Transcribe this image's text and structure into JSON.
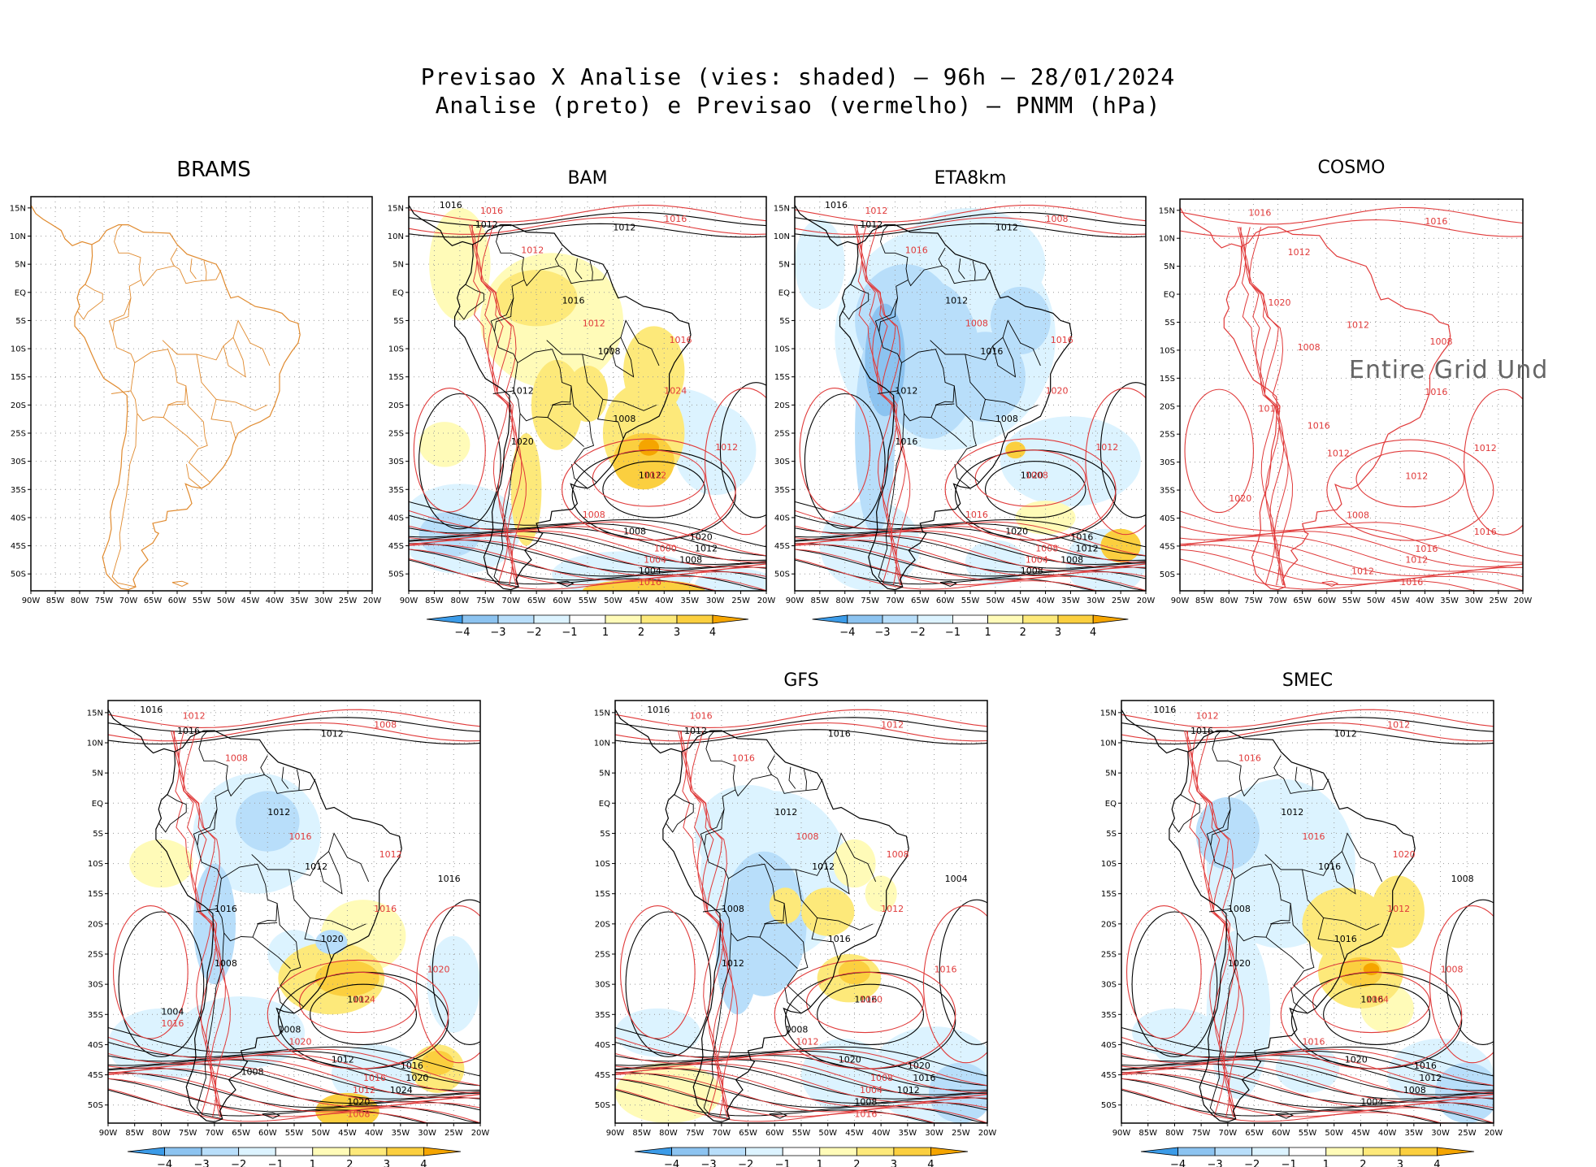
{
  "header": {
    "line1": "Previsao X Analise (vies: shaded) — 96h — 28/01/2024",
    "line2": "Analise (preto) e Previsao (vermelho) — PNMM (hPa)"
  },
  "colors": {
    "neg4": "#3b9be8",
    "neg3": "#8cc3f0",
    "neg2": "#b8defa",
    "neg1": "#dcf3ff",
    "zero": "#ffffff",
    "pos1": "#fffbb8",
    "pos2": "#fde97a",
    "pos3": "#fbcf3f",
    "pos4": "#f5a500",
    "coast_brams": "#e08a2e",
    "analysis_contour": "#000000",
    "forecast_contour": "#e03a3a"
  },
  "axes": {
    "lat_labels": [
      "15N",
      "10N",
      "5N",
      "EQ",
      "5S",
      "10S",
      "15S",
      "20S",
      "25S",
      "30S",
      "35S",
      "40S",
      "45S",
      "50S"
    ],
    "lon_labels": [
      "90W",
      "85W",
      "80W",
      "75W",
      "70W",
      "65W",
      "60W",
      "55W",
      "50W",
      "45W",
      "40W",
      "35W",
      "30W",
      "25W",
      "20W"
    ]
  },
  "colorbar": {
    "ticks": [
      "−4",
      "−3",
      "−2",
      "−1",
      "1",
      "2",
      "3",
      "4"
    ]
  },
  "panels": [
    {
      "id": "brams",
      "title": "BRAMS",
      "has_colorbar": false,
      "note": ""
    },
    {
      "id": "bam",
      "title": "BAM",
      "has_colorbar": true,
      "note": "",
      "labels_black": [
        "1016",
        "1012",
        "1012",
        "1016",
        "1008",
        "1012",
        "1008",
        "1020",
        "1012",
        "1008",
        "1020",
        "1012",
        "1008",
        "1004"
      ],
      "labels_red": [
        "1016",
        "1012",
        "1016",
        "1012",
        "1016",
        "1024",
        "1012",
        "1012",
        "1008",
        "1000",
        "1004",
        "1016"
      ]
    },
    {
      "id": "eta8km",
      "title": "ETA8km",
      "has_colorbar": true,
      "note": "",
      "labels_black": [
        "1016",
        "1012",
        "1012",
        "1012",
        "1016",
        "1012",
        "1008",
        "1016",
        "1020",
        "1020",
        "1016",
        "1012",
        "1008",
        "1008"
      ],
      "labels_red": [
        "1012",
        "1016",
        "1008",
        "1008",
        "1016",
        "1020",
        "1012",
        "1008",
        "1016",
        "1008",
        "1004"
      ]
    },
    {
      "id": "cosmo",
      "title": "COSMO",
      "has_colorbar": false,
      "note": "Entire Grid Und",
      "labels_red": [
        "1016",
        "1012",
        "1016",
        "1012",
        "1008",
        "1016",
        "1012",
        "1012",
        "1008",
        "1016",
        "1012",
        "1016",
        "1020",
        "1012",
        "1020",
        "1016",
        "1008",
        "1012",
        "1016",
        "1012"
      ]
    },
    {
      "id": "unnamed",
      "title": "",
      "has_colorbar": true,
      "note": "",
      "labels_black": [
        "1016",
        "1016",
        "1012",
        "1012",
        "1012",
        "1016",
        "1020",
        "1008",
        "1012",
        "1012",
        "1016",
        "1020",
        "1024",
        "1020",
        "1016",
        "1008",
        "1004",
        "1008"
      ],
      "labels_red": [
        "1012",
        "1008",
        "1008",
        "1016",
        "1012",
        "1016",
        "1020",
        "1024",
        "1020",
        "1016",
        "1012",
        "1008",
        "1016"
      ]
    },
    {
      "id": "gfs",
      "title": "GFS",
      "has_colorbar": true,
      "note": "",
      "labels_black": [
        "1016",
        "1012",
        "1016",
        "1012",
        "1012",
        "1008",
        "1016",
        "1012",
        "1016",
        "1020",
        "1020",
        "1016",
        "1012",
        "1008",
        "1004",
        "1008"
      ],
      "labels_red": [
        "1016",
        "1016",
        "1012",
        "1008",
        "1008",
        "1012",
        "1016",
        "1020",
        "1012",
        "1008",
        "1004",
        "1016"
      ]
    },
    {
      "id": "smec",
      "title": "SMEC",
      "has_colorbar": true,
      "note": "",
      "labels_black": [
        "1016",
        "1016",
        "1012",
        "1012",
        "1016",
        "1008",
        "1016",
        "1020",
        "1016",
        "1020",
        "1016",
        "1012",
        "1008",
        "1004",
        "1008"
      ],
      "labels_red": [
        "1012",
        "1016",
        "1012",
        "1016",
        "1020",
        "1012",
        "1008",
        "1004",
        "1016"
      ]
    }
  ]
}
